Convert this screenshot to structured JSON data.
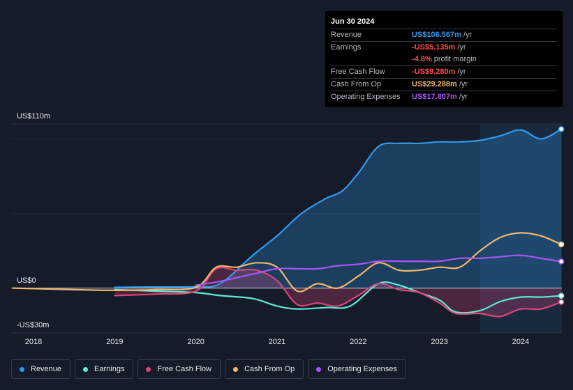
{
  "tooltip": {
    "date": "Jun 30 2024",
    "rows": [
      {
        "label": "Revenue",
        "value": "US$106.567m",
        "unit": "/yr",
        "color": "#2d9cf0"
      },
      {
        "label": "Earnings",
        "value": "-US$5.135m",
        "unit": "/yr",
        "color": "#ff4d4d"
      },
      {
        "label": "",
        "value": "-4.8%",
        "unit": "profit margin",
        "color": "#ff4d4d"
      },
      {
        "label": "Free Cash Flow",
        "value": "-US$9.280m",
        "unit": "/yr",
        "color": "#ff4d4d"
      },
      {
        "label": "Cash From Op",
        "value": "US$29.288m",
        "unit": "/yr",
        "color": "#f0b86e"
      },
      {
        "label": "Operating Expenses",
        "value": "US$17.807m",
        "unit": "/yr",
        "color": "#a855f7"
      }
    ]
  },
  "legend": [
    {
      "label": "Revenue",
      "color": "#2d9cf0"
    },
    {
      "label": "Earnings",
      "color": "#5eead4"
    },
    {
      "label": "Free Cash Flow",
      "color": "#d9467a"
    },
    {
      "label": "Cash From Op",
      "color": "#f0b86e"
    },
    {
      "label": "Operating Expenses",
      "color": "#a855f7"
    }
  ],
  "chart_data": {
    "type": "line",
    "title": "",
    "ylabels": {
      "top": "US$110m",
      "zero": "US$0",
      "bottom": "-US$30m"
    },
    "ylim": [
      -30,
      110
    ],
    "xlim": [
      2017.75,
      2024.5
    ],
    "xticks": [
      "2018",
      "2019",
      "2020",
      "2021",
      "2022",
      "2023",
      "2024"
    ],
    "highlight_from": 2023.5,
    "series": [
      {
        "name": "Revenue",
        "color": "#2d9cf0",
        "x": [
          2019.0,
          2019.5,
          2020.0,
          2020.3,
          2020.7,
          2021.0,
          2021.3,
          2021.6,
          2021.8,
          2022.0,
          2022.25,
          2022.5,
          2022.75,
          2023.0,
          2023.25,
          2023.5,
          2023.75,
          2024.0,
          2024.25,
          2024.5
        ],
        "values": [
          0.5,
          0.8,
          1.0,
          3.0,
          22.0,
          35.0,
          50.0,
          60.0,
          65.0,
          77.0,
          95.0,
          97.0,
          97.0,
          98.0,
          98.0,
          99.0,
          102.0,
          106.0,
          100.0,
          106.567
        ]
      },
      {
        "name": "Earnings",
        "color": "#5eead4",
        "x": [
          2019.0,
          2019.5,
          2020.0,
          2020.3,
          2020.7,
          2021.0,
          2021.25,
          2021.6,
          2021.9,
          2022.25,
          2022.5,
          2022.75,
          2023.0,
          2023.2,
          2023.5,
          2023.75,
          2024.0,
          2024.25,
          2024.5
        ],
        "values": [
          -1.0,
          -2.0,
          -3.0,
          -5.0,
          -7.0,
          -12.0,
          -14.0,
          -13.0,
          -12.0,
          3.0,
          2.0,
          -3.0,
          -8.0,
          -16.0,
          -15.0,
          -9.0,
          -6.0,
          -6.0,
          -5.135
        ]
      },
      {
        "name": "Free Cash Flow",
        "color": "#d9467a",
        "x": [
          2019.0,
          2019.5,
          2020.0,
          2020.25,
          2020.5,
          2020.75,
          2021.0,
          2021.25,
          2021.5,
          2021.75,
          2022.0,
          2022.25,
          2022.5,
          2022.75,
          2023.0,
          2023.2,
          2023.5,
          2023.75,
          2024.0,
          2024.25,
          2024.5
        ],
        "values": [
          -5.0,
          -4.0,
          -2.0,
          13.0,
          12.0,
          12.0,
          5.0,
          -11.0,
          -10.0,
          -12.0,
          -5.0,
          3.0,
          -1.0,
          -3.0,
          -10.0,
          -17.0,
          -17.0,
          -19.0,
          -14.0,
          -14.0,
          -9.28
        ]
      },
      {
        "name": "Cash From Op",
        "color": "#f0b86e",
        "x": [
          2017.75,
          2018.5,
          2019.0,
          2019.5,
          2020.0,
          2020.25,
          2020.5,
          2020.75,
          2021.0,
          2021.25,
          2021.5,
          2021.75,
          2022.0,
          2022.25,
          2022.5,
          2022.75,
          2023.0,
          2023.25,
          2023.5,
          2023.75,
          2024.0,
          2024.25,
          2024.5
        ],
        "values": [
          0.0,
          -1.0,
          -1.5,
          -1.0,
          0.5,
          14.0,
          14.0,
          17.0,
          14.0,
          -2.0,
          3.0,
          0.0,
          8.0,
          17.0,
          12.0,
          12.0,
          14.0,
          14.0,
          25.0,
          34.0,
          37.0,
          35.0,
          29.288
        ]
      },
      {
        "name": "Operating Expenses",
        "color": "#a855f7",
        "x": [
          2020.0,
          2020.25,
          2020.5,
          2020.75,
          2021.0,
          2021.25,
          2021.5,
          2021.75,
          2022.0,
          2022.25,
          2022.5,
          2022.75,
          2023.0,
          2023.25,
          2023.5,
          2023.75,
          2024.0,
          2024.25,
          2024.5
        ],
        "values": [
          2.0,
          4.0,
          7.0,
          10.0,
          13.0,
          13.0,
          13.0,
          15.0,
          16.0,
          18.0,
          18.0,
          18.0,
          18.0,
          20.0,
          20.0,
          21.0,
          22.0,
          20.0,
          17.807
        ]
      }
    ]
  }
}
